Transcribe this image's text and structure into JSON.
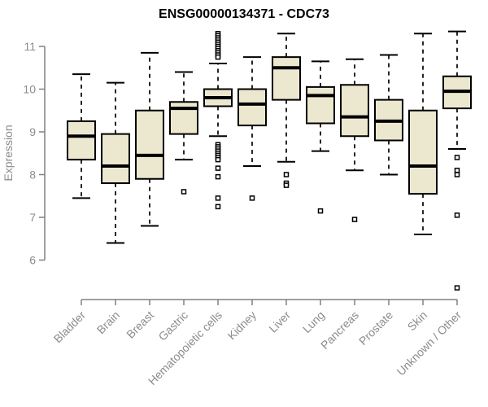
{
  "chart_data": {
    "type": "boxplot",
    "title": "ENSG00000134371 - CDC73",
    "ylabel": "Expression",
    "xlabel": "",
    "ylim": [
      5.2,
      11.5
    ],
    "yticks": [
      6,
      7,
      8,
      9,
      10,
      11
    ],
    "grid": false,
    "legend": null,
    "categories": [
      "Bladder",
      "Brain",
      "Breast",
      "Gastric",
      "Hematopoietic cells",
      "Kidney",
      "Liver",
      "Lung",
      "Pancreas",
      "Prostate",
      "Skin",
      "Unknown / Other"
    ],
    "series": [
      {
        "category": "Bladder",
        "whisker_low": 7.45,
        "q1": 8.35,
        "median": 8.9,
        "q3": 9.25,
        "whisker_high": 10.35,
        "outliers": []
      },
      {
        "category": "Brain",
        "whisker_low": 6.4,
        "q1": 7.8,
        "median": 8.2,
        "q3": 8.95,
        "whisker_high": 10.15,
        "outliers": []
      },
      {
        "category": "Breast",
        "whisker_low": 6.8,
        "q1": 7.9,
        "median": 8.45,
        "q3": 9.5,
        "whisker_high": 10.85,
        "outliers": []
      },
      {
        "category": "Gastric",
        "whisker_low": 8.35,
        "q1": 8.95,
        "median": 9.55,
        "q3": 9.7,
        "whisker_high": 10.4,
        "outliers": [
          7.6
        ]
      },
      {
        "category": "Hematopoietic cells",
        "whisker_low": 8.9,
        "q1": 9.6,
        "median": 9.8,
        "q3": 10.0,
        "whisker_high": 10.6,
        "outliers": [
          11.3,
          11.25,
          11.2,
          11.15,
          11.1,
          11.05,
          11.0,
          10.95,
          10.9,
          10.85,
          10.8,
          10.75,
          8.7,
          8.65,
          8.6,
          8.55,
          8.5,
          8.45,
          8.4,
          8.35,
          8.15,
          7.95,
          7.45,
          7.25
        ]
      },
      {
        "category": "Kidney",
        "whisker_low": 8.2,
        "q1": 9.15,
        "median": 9.65,
        "q3": 10.0,
        "whisker_high": 10.75,
        "outliers": [
          7.45
        ]
      },
      {
        "category": "Liver",
        "whisker_low": 8.3,
        "q1": 9.75,
        "median": 10.5,
        "q3": 10.75,
        "whisker_high": 11.3,
        "outliers": [
          8.0,
          7.8,
          7.75
        ]
      },
      {
        "category": "Lung",
        "whisker_low": 8.55,
        "q1": 9.2,
        "median": 9.85,
        "q3": 10.05,
        "whisker_high": 10.65,
        "outliers": [
          7.15
        ]
      },
      {
        "category": "Pancreas",
        "whisker_low": 8.1,
        "q1": 8.9,
        "median": 9.35,
        "q3": 10.1,
        "whisker_high": 10.7,
        "outliers": [
          6.95
        ]
      },
      {
        "category": "Prostate",
        "whisker_low": 8.0,
        "q1": 8.8,
        "median": 9.25,
        "q3": 9.75,
        "whisker_high": 10.8,
        "outliers": []
      },
      {
        "category": "Skin",
        "whisker_low": 6.6,
        "q1": 7.55,
        "median": 8.2,
        "q3": 9.5,
        "whisker_high": 11.3,
        "outliers": []
      },
      {
        "category": "Unknown / Other",
        "whisker_low": 8.6,
        "q1": 9.55,
        "median": 9.95,
        "q3": 10.3,
        "whisker_high": 11.35,
        "outliers": [
          8.4,
          8.1,
          8.0,
          7.05,
          5.35
        ]
      }
    ],
    "colors": {
      "box_fill": "#ECE7CF",
      "box_stroke": "#000000",
      "median": "#000000",
      "whisker": "#000000",
      "axis": "#808080",
      "tick_label": "#8C8C8C",
      "title": "#000000",
      "background": "#FFFFFF"
    }
  }
}
